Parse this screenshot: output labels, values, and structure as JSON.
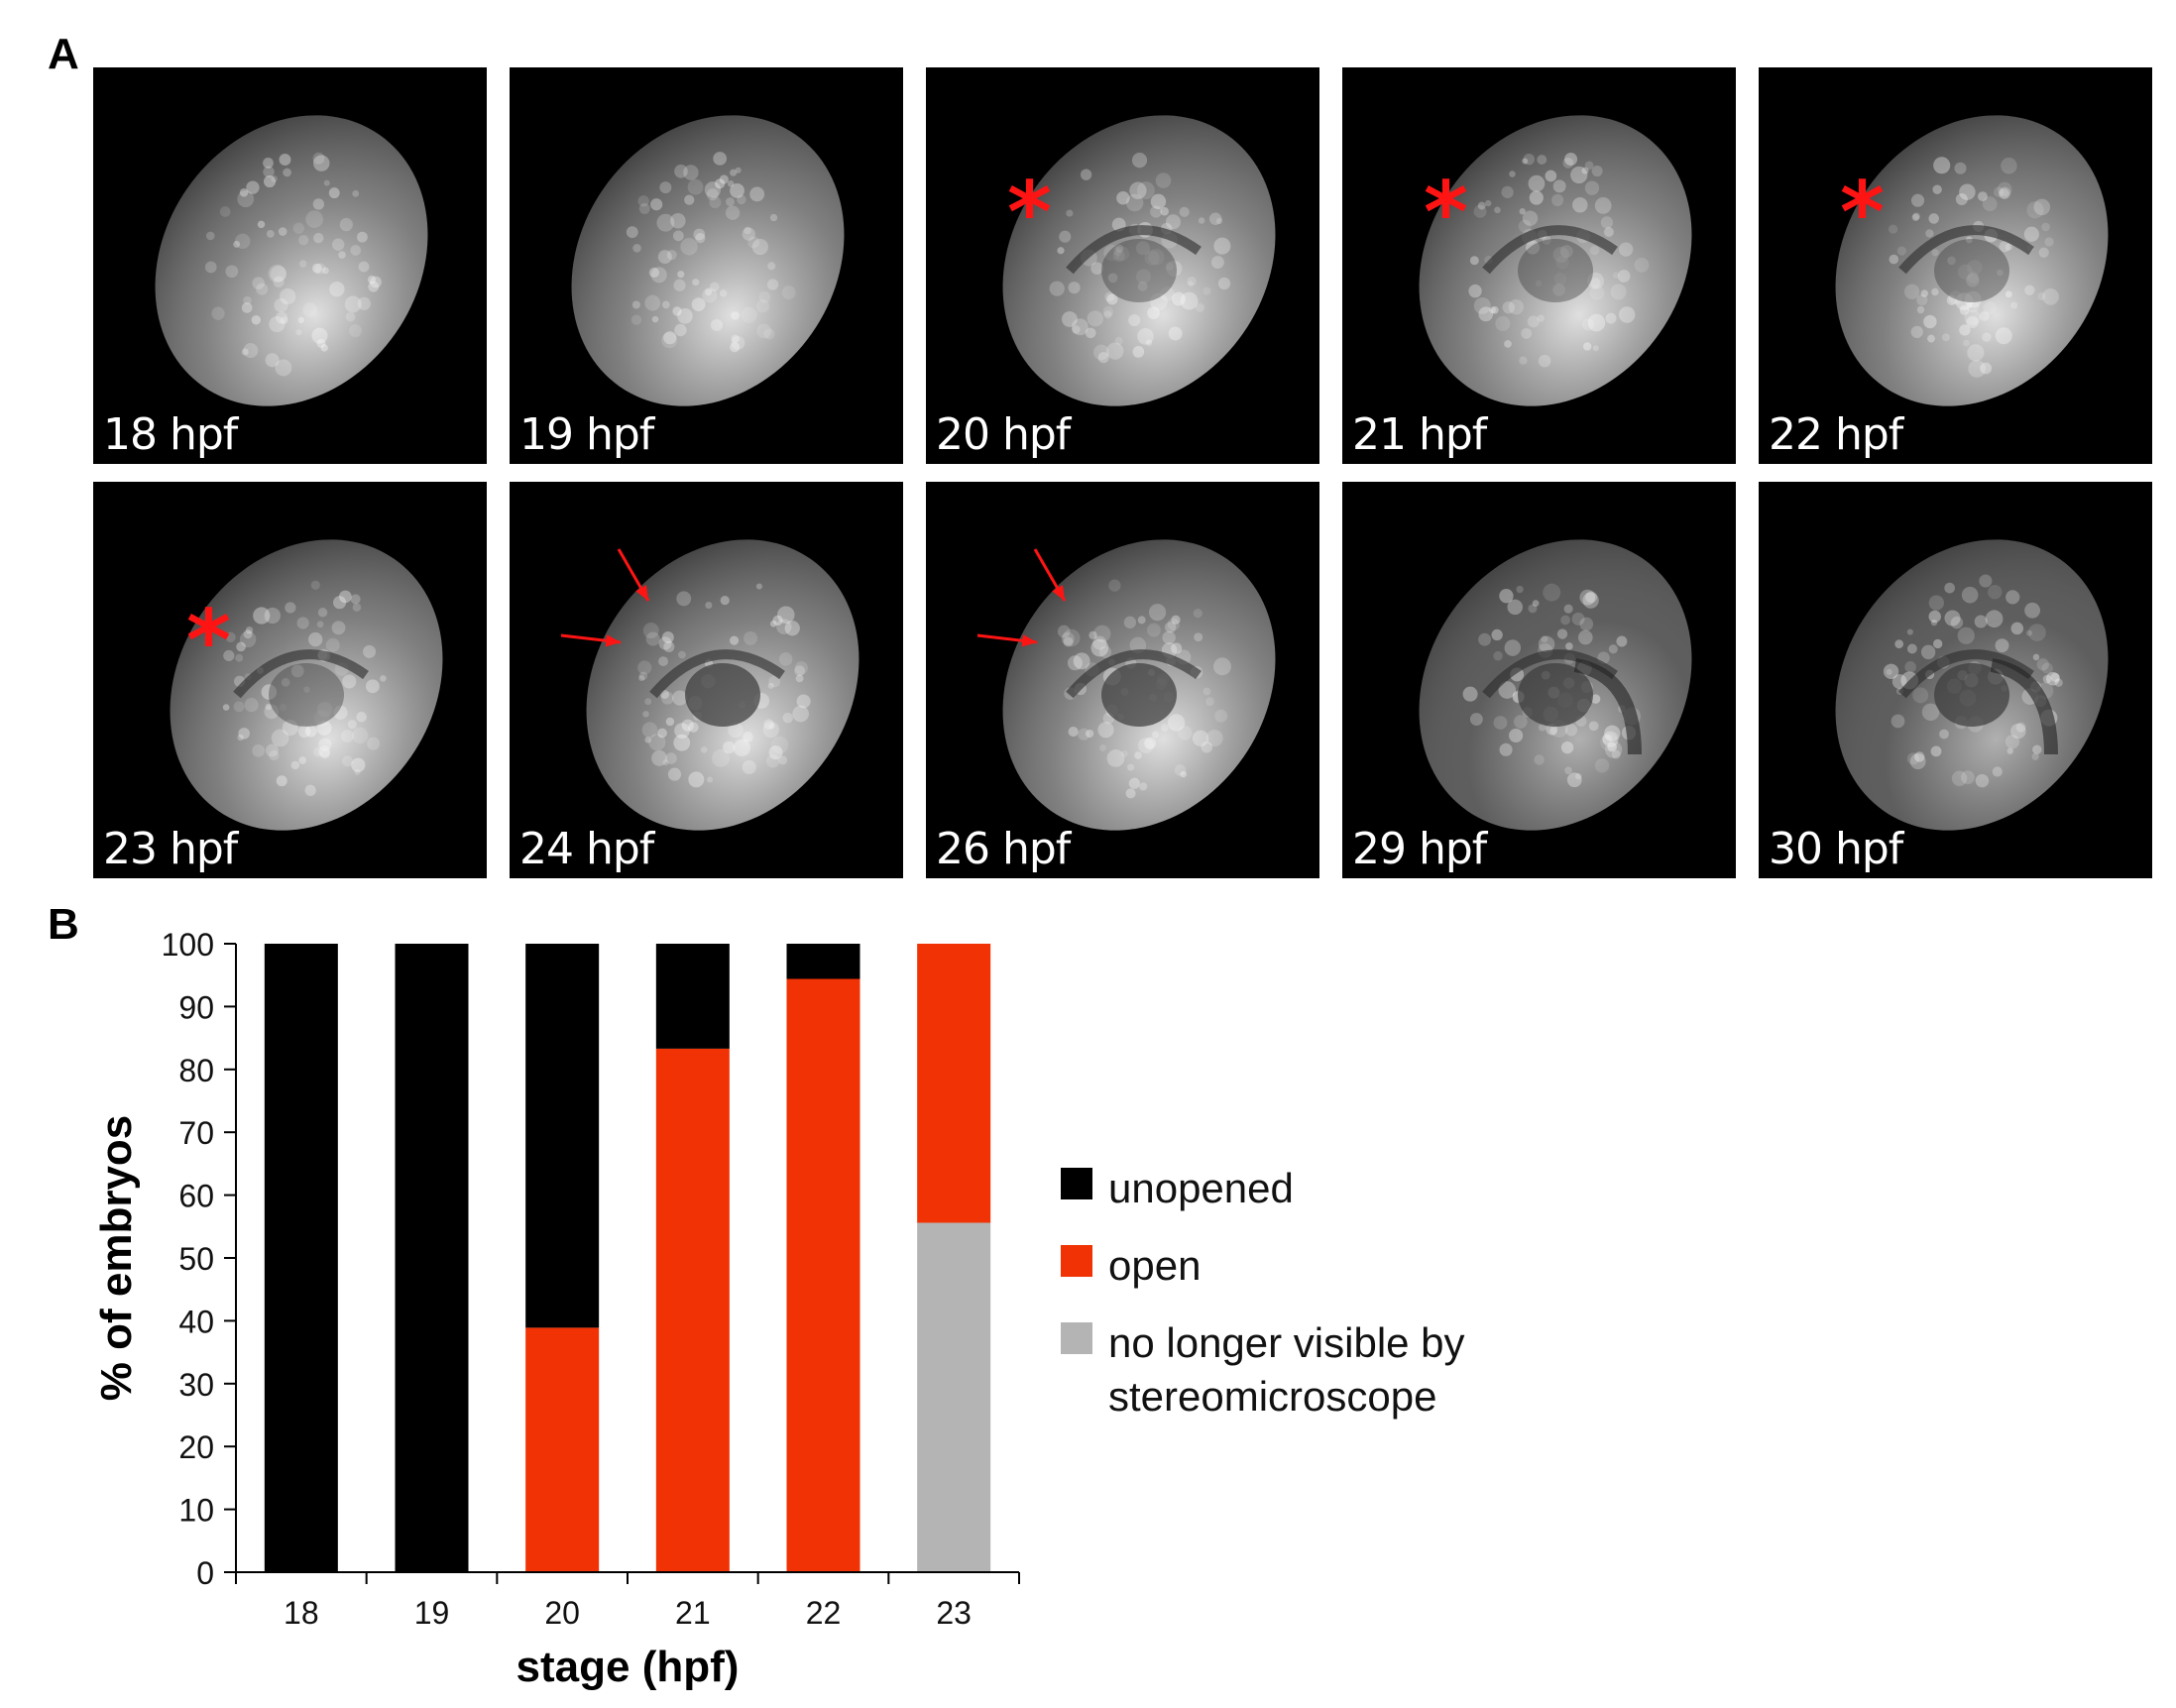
{
  "panel_a": {
    "label": "A",
    "tiles": [
      {
        "label": "18 hpf",
        "stage": 0,
        "asterisk": false,
        "arrows": false
      },
      {
        "label": "19 hpf",
        "stage": 1,
        "asterisk": false,
        "arrows": false
      },
      {
        "label": "20 hpf",
        "stage": 2,
        "asterisk": true,
        "arrows": false
      },
      {
        "label": "21 hpf",
        "stage": 3,
        "asterisk": true,
        "arrows": false
      },
      {
        "label": "22 hpf",
        "stage": 4,
        "asterisk": true,
        "arrows": false
      },
      {
        "label": "23 hpf",
        "stage": 5,
        "asterisk": true,
        "arrows": false
      },
      {
        "label": "24 hpf",
        "stage": 6,
        "asterisk": false,
        "arrows": true
      },
      {
        "label": "26 hpf",
        "stage": 7,
        "asterisk": false,
        "arrows": true
      },
      {
        "label": "29 hpf",
        "stage": 8,
        "asterisk": false,
        "arrows": false
      },
      {
        "label": "30 hpf",
        "stage": 9,
        "asterisk": false,
        "arrows": false
      }
    ],
    "asterisk_glyph": "*",
    "marker_color": "#ff1414"
  },
  "panel_b": {
    "label": "B",
    "legend": [
      {
        "label": "unopened",
        "color": "#000000"
      },
      {
        "label": "open",
        "color": "#f03205"
      },
      {
        "label": "no longer visible by\nstereomicroscope",
        "color": "#b4b4b4"
      }
    ]
  },
  "chart_data": {
    "type": "bar",
    "stacked": true,
    "categories": [
      "18",
      "19",
      "20",
      "21",
      "22",
      "23"
    ],
    "series": [
      {
        "name": "no longer visible by stereomicroscope",
        "color": "#b4b4b4",
        "values": [
          0,
          0,
          0,
          0,
          0,
          55.6
        ]
      },
      {
        "name": "open",
        "color": "#f03205",
        "values": [
          0,
          0,
          38.9,
          83.3,
          94.4,
          44.4
        ]
      },
      {
        "name": "unopened",
        "color": "#000000",
        "values": [
          100,
          100,
          61.1,
          16.7,
          5.6,
          0
        ]
      }
    ],
    "xlabel": "stage (hpf)",
    "ylabel": "% of embryos",
    "ylim": [
      0,
      100
    ],
    "yticks": [
      0,
      10,
      20,
      30,
      40,
      50,
      60,
      70,
      80,
      90,
      100
    ],
    "grid": false,
    "legend_position": "right"
  }
}
